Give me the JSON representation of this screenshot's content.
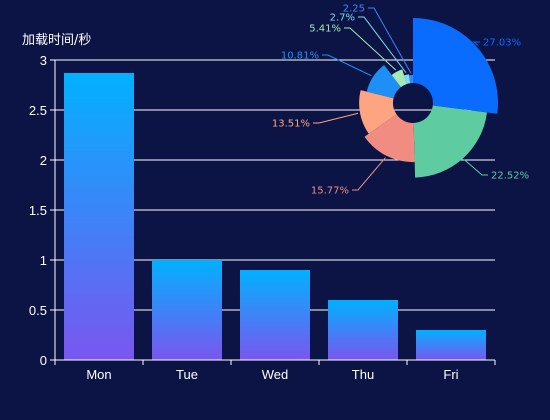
{
  "chart_data": [
    {
      "type": "bar",
      "ylabel": "加载时间/秒",
      "categories": [
        "Mon",
        "Tue",
        "Wed",
        "Thu",
        "Fri"
      ],
      "values": [
        2.87,
        1.0,
        0.9,
        0.6,
        0.3
      ],
      "ylim": [
        0,
        3
      ],
      "yticks": [
        "0",
        "0.5",
        "1",
        "1.5",
        "2",
        "2.5",
        "3"
      ],
      "grid": true,
      "colors": {
        "bar_top": "#01b1ff",
        "bar_bottom": "#7a56ef",
        "axis": "#ffffff",
        "grid": "#ffffff",
        "background": "#0b1444"
      }
    },
    {
      "type": "pie",
      "subtype": "nightingale-rose",
      "slices": [
        {
          "label": "27.03%",
          "value": 27.03,
          "color": "#0a6bff"
        },
        {
          "label": "22.52%",
          "value": 22.52,
          "color": "#5ecba1"
        },
        {
          "label": "15.77%",
          "value": 15.77,
          "color": "#f08c82"
        },
        {
          "label": "13.51%",
          "value": 13.51,
          "color": "#ffa480"
        },
        {
          "label": "10.81%",
          "value": 10.81,
          "color": "#1d8ff5"
        },
        {
          "label": "5.41%",
          "value": 5.41,
          "color": "#a4e8b6"
        },
        {
          "label": "2.7%",
          "value": 2.7,
          "color": "#7ddcf0"
        },
        {
          "label": "2.25",
          "value": 2.25,
          "color": "#3a86ff"
        }
      ]
    }
  ]
}
